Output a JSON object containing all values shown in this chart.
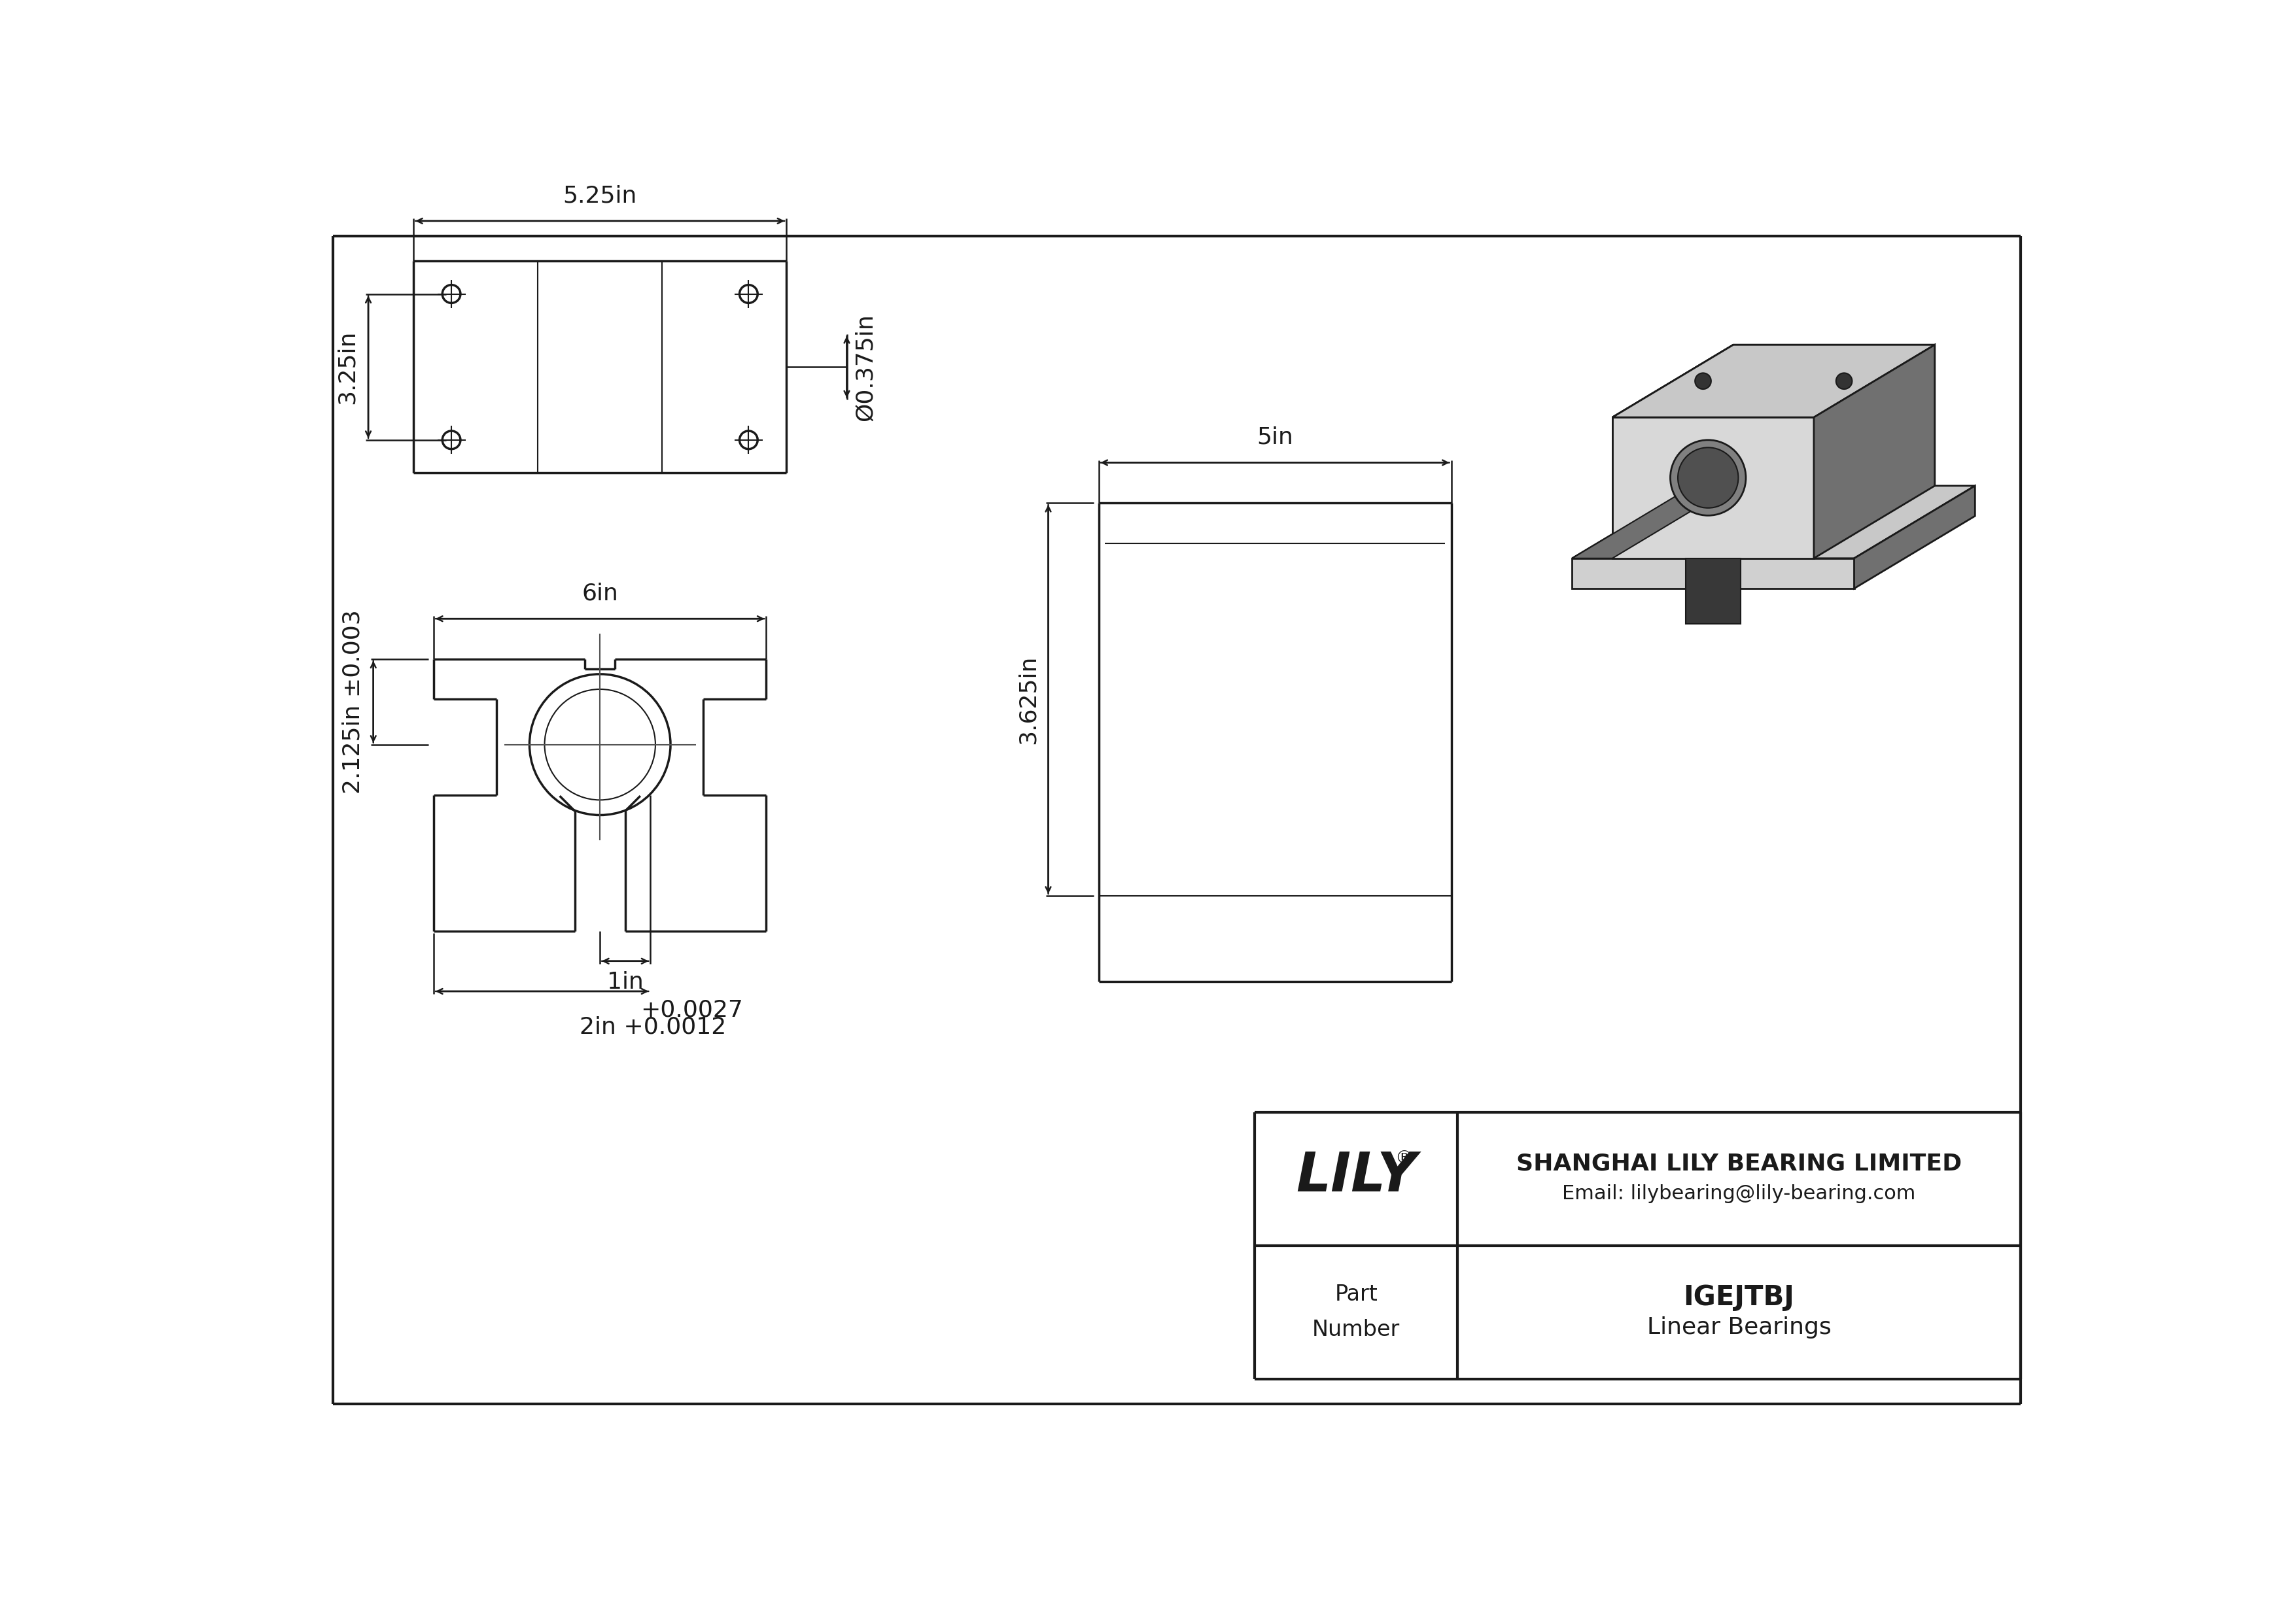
{
  "bg_color": "#ffffff",
  "line_color": "#1a1a1a",
  "title": "IGEJTBJ",
  "subtitle": "Linear Bearings",
  "company": "SHANGHAI LILY BEARING LIMITED",
  "email": "Email: lilybearing@lily-bearing.com",
  "part_label": "Part\nNumber",
  "logo": "LILY",
  "logo_reg": "®",
  "dim_525": "5.25in",
  "dim_325": "3.25in",
  "dim_0375": "Ø0.375in",
  "dim_6": "6in",
  "dim_5": "5in",
  "dim_2125": "2.125in ±0.003",
  "dim_3625": "3.625in",
  "dim_1": "1in",
  "dim_2_line1": "+0.0027",
  "dim_2_line2": "2in +0.0012",
  "gray_light": "#c8c8c8",
  "gray_mid": "#a0a0a0",
  "gray_dark": "#707070",
  "gray_darkest": "#404040",
  "font_size_dim": 26,
  "font_size_logo": 60,
  "font_size_company": 26,
  "font_size_part": 30
}
